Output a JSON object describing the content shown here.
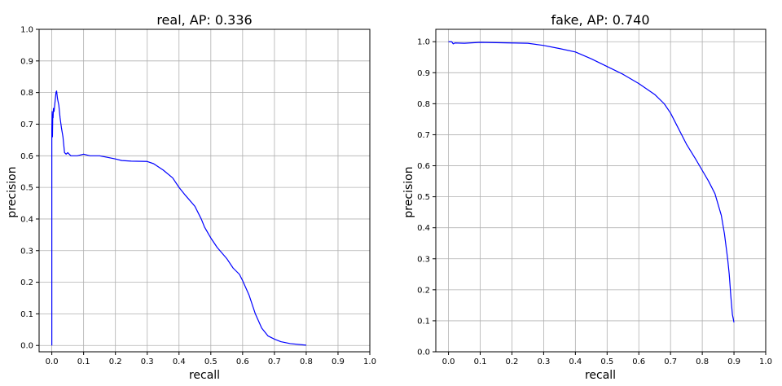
{
  "colors": {
    "line": "#0000ff",
    "grid": "#b0b0b0",
    "frame": "#000000",
    "background": "#ffffff"
  },
  "chart_data": [
    {
      "type": "line",
      "title": "real, AP: 0.336",
      "xlabel": "recall",
      "ylabel": "precision",
      "grid": true,
      "xlim": [
        -0.04,
        1.0
      ],
      "ylim": [
        -0.02,
        1.0
      ],
      "xticks": [
        0.0,
        0.1,
        0.2,
        0.3,
        0.4,
        0.5,
        0.6,
        0.7,
        0.8,
        0.9,
        1.0
      ],
      "xtick_labels": [
        "0.0",
        "0.1",
        "0.2",
        "0.3",
        "0.4",
        "0.5",
        "0.6",
        "0.7",
        "0.8",
        "0.9",
        "1.0"
      ],
      "yticks": [
        0.0,
        0.1,
        0.2,
        0.3,
        0.4,
        0.5,
        0.6,
        0.7,
        0.8,
        0.9,
        1.0
      ],
      "ytick_labels": [
        "0.0",
        "0.1",
        "0.2",
        "0.3",
        "0.4",
        "0.5",
        "0.6",
        "0.7",
        "0.8",
        "0.9",
        "1.0"
      ],
      "series": [
        {
          "name": "real",
          "x": [
            0.0,
            0.0,
            0.001,
            0.002,
            0.003,
            0.004,
            0.005,
            0.007,
            0.009,
            0.011,
            0.013,
            0.015,
            0.018,
            0.022,
            0.026,
            0.03,
            0.035,
            0.04,
            0.045,
            0.05,
            0.06,
            0.08,
            0.1,
            0.12,
            0.15,
            0.2,
            0.22,
            0.25,
            0.3,
            0.32,
            0.35,
            0.38,
            0.4,
            0.42,
            0.45,
            0.47,
            0.48,
            0.5,
            0.52,
            0.55,
            0.57,
            0.59,
            0.6,
            0.62,
            0.64,
            0.66,
            0.68,
            0.7,
            0.72,
            0.75,
            0.8
          ],
          "y": [
            0.0,
            0.68,
            0.74,
            0.66,
            0.73,
            0.72,
            0.75,
            0.74,
            0.76,
            0.78,
            0.8,
            0.805,
            0.78,
            0.76,
            0.72,
            0.69,
            0.66,
            0.61,
            0.605,
            0.61,
            0.6,
            0.6,
            0.605,
            0.6,
            0.6,
            0.59,
            0.585,
            0.583,
            0.582,
            0.575,
            0.555,
            0.53,
            0.5,
            0.475,
            0.44,
            0.4,
            0.375,
            0.34,
            0.31,
            0.275,
            0.245,
            0.225,
            0.205,
            0.16,
            0.1,
            0.055,
            0.03,
            0.02,
            0.012,
            0.006,
            0.001
          ]
        }
      ]
    },
    {
      "type": "line",
      "title": "fake, AP: 0.740",
      "xlabel": "recall",
      "ylabel": "precision",
      "grid": true,
      "xlim": [
        -0.04,
        1.0
      ],
      "ylim": [
        0.0,
        1.04
      ],
      "xticks": [
        0.0,
        0.1,
        0.2,
        0.3,
        0.4,
        0.5,
        0.6,
        0.7,
        0.8,
        0.9,
        1.0
      ],
      "xtick_labels": [
        "0.0",
        "0.1",
        "0.2",
        "0.3",
        "0.4",
        "0.5",
        "0.6",
        "0.7",
        "0.8",
        "0.9",
        "1.0"
      ],
      "yticks": [
        0.0,
        0.1,
        0.2,
        0.3,
        0.4,
        0.5,
        0.6,
        0.7,
        0.8,
        0.9,
        1.0
      ],
      "ytick_labels": [
        "0.0",
        "0.1",
        "0.2",
        "0.3",
        "0.4",
        "0.5",
        "0.6",
        "0.7",
        "0.8",
        "0.9",
        "1.0"
      ],
      "series": [
        {
          "name": "fake",
          "x": [
            0.0,
            0.01,
            0.015,
            0.02,
            0.05,
            0.1,
            0.15,
            0.2,
            0.25,
            0.3,
            0.35,
            0.4,
            0.45,
            0.5,
            0.55,
            0.6,
            0.65,
            0.68,
            0.7,
            0.72,
            0.75,
            0.78,
            0.8,
            0.82,
            0.84,
            0.86,
            0.87,
            0.88,
            0.885,
            0.89,
            0.895,
            0.9
          ],
          "y": [
            1.0,
            1.0,
            0.993,
            0.996,
            0.995,
            0.998,
            0.997,
            0.996,
            0.995,
            0.988,
            0.978,
            0.967,
            0.945,
            0.92,
            0.895,
            0.865,
            0.83,
            0.8,
            0.77,
            0.73,
            0.67,
            0.62,
            0.585,
            0.55,
            0.51,
            0.44,
            0.38,
            0.3,
            0.25,
            0.18,
            0.12,
            0.095
          ]
        }
      ]
    }
  ]
}
